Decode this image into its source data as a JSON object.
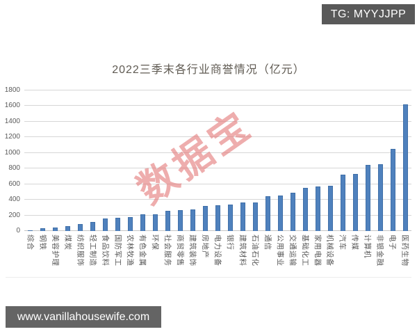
{
  "badges": {
    "tg": "TG: MYYJJPP",
    "site_url": "www.vanillahousewife.com"
  },
  "watermark_text": "数据宝",
  "colors": {
    "bar_fill": "#4f81bd",
    "bar_border": "#3f6fa8",
    "gridline": "#d6d6d6",
    "axis_text": "#595959",
    "badge_bg": "#595959",
    "site_badge_bg": "#646464",
    "watermark": "#e47a7a"
  },
  "chart_data": {
    "type": "bar",
    "title": "2022三季末各行业商誉情况（亿元）",
    "xlabel": "",
    "ylabel": "",
    "ylim": [
      0,
      1800
    ],
    "yticks": [
      0,
      200,
      400,
      600,
      800,
      1000,
      1200,
      1400,
      1600,
      1800
    ],
    "grid": true,
    "legend": false,
    "categories": [
      "综合",
      "钢铁",
      "美容护理",
      "煤炭",
      "纺织服饰",
      "轻工制造",
      "食品饮料",
      "国防军工",
      "农林牧渔",
      "有色金属",
      "环保",
      "社会服务",
      "商贸零售",
      "建筑装饰",
      "房地产",
      "电力设备",
      "银行",
      "建筑材料",
      "石油石化",
      "通信",
      "公用事业",
      "交通运输",
      "基础化工",
      "家用电器",
      "机械设备",
      "汽车",
      "传媒",
      "计算机",
      "非银金融",
      "电子",
      "医药生物"
    ],
    "values": [
      10,
      35,
      48,
      65,
      87,
      113,
      158,
      170,
      180,
      210,
      215,
      262,
      270,
      280,
      320,
      333,
      338,
      363,
      367,
      450,
      458,
      493,
      555,
      573,
      580,
      725,
      730,
      845,
      858,
      1055,
      1625
    ]
  }
}
